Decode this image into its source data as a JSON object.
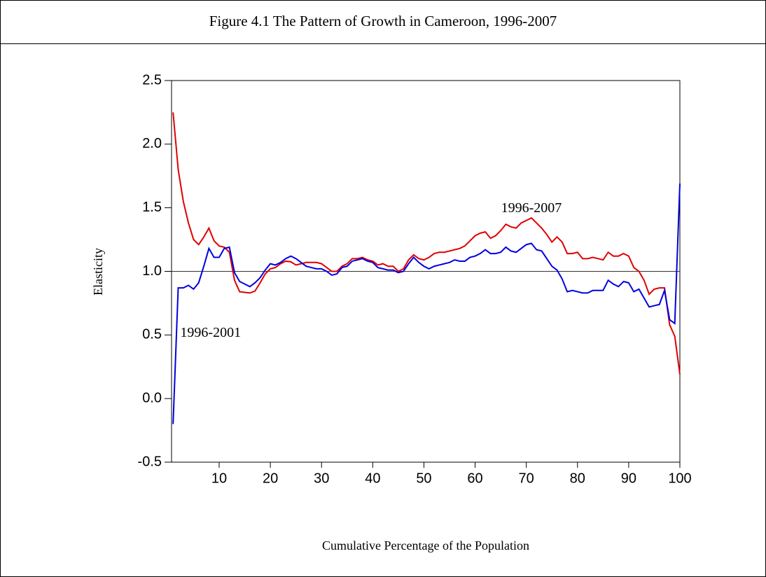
{
  "chart_data": {
    "type": "line",
    "title": "Figure 4.1 The Pattern of Growth in Cameroon, 1996-2007",
    "xlabel": "Cumulative Percentage of the Population",
    "ylabel": "Elasticity",
    "x": [
      1,
      2,
      3,
      4,
      5,
      6,
      7,
      8,
      9,
      10,
      11,
      12,
      13,
      14,
      15,
      16,
      17,
      18,
      19,
      20,
      21,
      22,
      23,
      24,
      25,
      26,
      27,
      28,
      29,
      30,
      31,
      32,
      33,
      34,
      35,
      36,
      37,
      38,
      39,
      40,
      41,
      42,
      43,
      44,
      45,
      46,
      47,
      48,
      49,
      50,
      51,
      52,
      53,
      54,
      55,
      56,
      57,
      58,
      59,
      60,
      61,
      62,
      63,
      64,
      65,
      66,
      67,
      68,
      69,
      70,
      71,
      72,
      73,
      74,
      75,
      76,
      77,
      78,
      79,
      80,
      81,
      82,
      83,
      84,
      85,
      86,
      87,
      88,
      89,
      90,
      91,
      92,
      93,
      94,
      95,
      96,
      97,
      98,
      99,
      100
    ],
    "series": [
      {
        "name": "1996-2007",
        "color": "#e00000",
        "values": [
          2.25,
          1.8,
          1.55,
          1.38,
          1.25,
          1.21,
          1.27,
          1.34,
          1.24,
          1.2,
          1.19,
          1.15,
          0.93,
          0.84,
          0.835,
          0.83,
          0.845,
          0.91,
          0.98,
          1.02,
          1.03,
          1.06,
          1.08,
          1.075,
          1.05,
          1.06,
          1.07,
          1.07,
          1.07,
          1.06,
          1.03,
          1.0,
          1.0,
          1.04,
          1.06,
          1.1,
          1.1,
          1.11,
          1.09,
          1.08,
          1.05,
          1.06,
          1.04,
          1.04,
          1.0,
          1.02,
          1.09,
          1.13,
          1.1,
          1.09,
          1.11,
          1.14,
          1.15,
          1.15,
          1.16,
          1.17,
          1.18,
          1.2,
          1.24,
          1.28,
          1.3,
          1.31,
          1.26,
          1.28,
          1.32,
          1.37,
          1.35,
          1.34,
          1.38,
          1.4,
          1.42,
          1.38,
          1.34,
          1.29,
          1.23,
          1.27,
          1.23,
          1.14,
          1.14,
          1.15,
          1.1,
          1.1,
          1.11,
          1.1,
          1.09,
          1.15,
          1.12,
          1.12,
          1.14,
          1.12,
          1.03,
          1.0,
          0.93,
          0.82,
          0.86,
          0.87,
          0.87,
          0.58,
          0.49,
          0.19
        ]
      },
      {
        "name": "1996-2001",
        "color": "#0000e0",
        "values": [
          -0.2,
          0.87,
          0.87,
          0.89,
          0.86,
          0.91,
          1.04,
          1.18,
          1.11,
          1.11,
          1.18,
          1.19,
          0.99,
          0.92,
          0.9,
          0.88,
          0.91,
          0.95,
          1.01,
          1.06,
          1.05,
          1.07,
          1.1,
          1.12,
          1.1,
          1.07,
          1.04,
          1.03,
          1.02,
          1.02,
          1.0,
          0.97,
          0.98,
          1.03,
          1.04,
          1.08,
          1.09,
          1.1,
          1.08,
          1.07,
          1.03,
          1.02,
          1.01,
          1.01,
          0.99,
          1.0,
          1.06,
          1.11,
          1.07,
          1.04,
          1.02,
          1.04,
          1.05,
          1.06,
          1.07,
          1.09,
          1.08,
          1.08,
          1.11,
          1.12,
          1.14,
          1.17,
          1.14,
          1.14,
          1.15,
          1.19,
          1.16,
          1.15,
          1.18,
          1.21,
          1.22,
          1.17,
          1.16,
          1.1,
          1.04,
          1.01,
          0.94,
          0.84,
          0.85,
          0.84,
          0.83,
          0.83,
          0.85,
          0.85,
          0.85,
          0.93,
          0.9,
          0.88,
          0.92,
          0.91,
          0.84,
          0.86,
          0.79,
          0.72,
          0.73,
          0.74,
          0.85,
          0.62,
          0.59,
          1.69
        ]
      }
    ],
    "annotations": [
      {
        "text": "1996-2007",
        "x": 71,
        "y": 1.49
      },
      {
        "text": "1996-2001",
        "x": 2.4,
        "y": 0.51
      }
    ],
    "hline": 1,
    "xlim": [
      0.7,
      100
    ],
    "xticks": [
      10,
      20,
      30,
      40,
      50,
      60,
      70,
      80,
      90,
      100
    ],
    "ylim": [
      -0.5,
      2.5
    ],
    "yticks": [
      {
        "value": -0.5,
        "label": "-0.5"
      },
      {
        "value": 0,
        "label": "0.0"
      },
      0.5,
      {
        "value": 1,
        "label": "1.0"
      },
      1.5,
      {
        "value": 2,
        "label": "2.0"
      },
      2.5
    ]
  }
}
